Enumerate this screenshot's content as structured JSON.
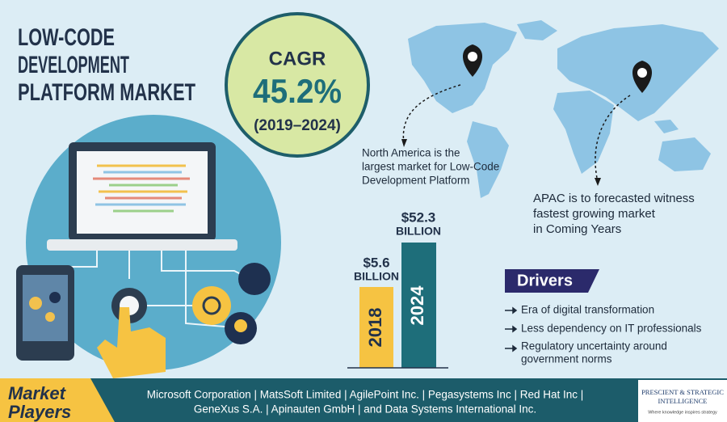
{
  "title": [
    "LOW-CODE",
    "DEVELOPMENT",
    "PLATFORM MARKET"
  ],
  "cagr": {
    "label": "CAGR",
    "value": "45.2%",
    "period": "(2019–2024)"
  },
  "regions": {
    "north_america": [
      "North America is the",
      "largest market for Low-Code",
      "Development Platform"
    ],
    "apac": [
      "APAC is to forecasted witness",
      "fastest growing market",
      "in Coming Years"
    ]
  },
  "bars": [
    {
      "year": "2018",
      "amount": "$5.6",
      "unit": "BILLION"
    },
    {
      "year": "2024",
      "amount": "$52.3",
      "unit": "BILLION"
    }
  ],
  "drivers": {
    "title": "Drivers",
    "items": [
      [
        "Era of digital transformation"
      ],
      [
        "Less dependency on IT professionals"
      ],
      [
        "Regulatory uncertainty around",
        "government norms"
      ]
    ]
  },
  "market_players": {
    "label": [
      "Market",
      "Players"
    ],
    "lines": [
      "Microsoft Corporation | MatsSoft Limited | AgilePoint Inc. | Pegasystems Inc | Red Hat Inc |",
      "GeneXus S.A. | Apinauten GmbH | and Data Systems International Inc."
    ]
  },
  "logo": {
    "name": [
      "PRESCIENT & STRATEGIC",
      "INTELLIGENCE"
    ],
    "tagline": "Where knowledge inspires strategy"
  }
}
